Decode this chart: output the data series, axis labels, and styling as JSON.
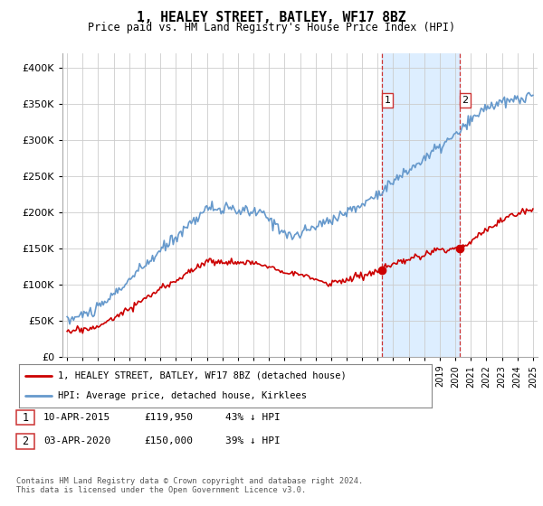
{
  "title": "1, HEALEY STREET, BATLEY, WF17 8BZ",
  "subtitle": "Price paid vs. HM Land Registry's House Price Index (HPI)",
  "legend_label_red": "1, HEALEY STREET, BATLEY, WF17 8BZ (detached house)",
  "legend_label_blue": "HPI: Average price, detached house, Kirklees",
  "footer_line1": "Contains HM Land Registry data © Crown copyright and database right 2024.",
  "footer_line2": "This data is licensed under the Open Government Licence v3.0.",
  "transaction1_label": "1",
  "transaction1_date": "10-APR-2015",
  "transaction1_price": "£119,950",
  "transaction1_hpi": "43% ↓ HPI",
  "transaction2_label": "2",
  "transaction2_date": "03-APR-2020",
  "transaction2_price": "£150,000",
  "transaction2_hpi": "39% ↓ HPI",
  "hpi_color": "#6699cc",
  "price_color": "#cc0000",
  "shading_color": "#ddeeff",
  "dashed_color": "#cc3333",
  "ylim": [
    0,
    420000
  ],
  "yticks": [
    0,
    50000,
    100000,
    150000,
    200000,
    250000,
    300000,
    350000,
    400000
  ],
  "x_start_year": 1995,
  "x_end_year": 2025
}
